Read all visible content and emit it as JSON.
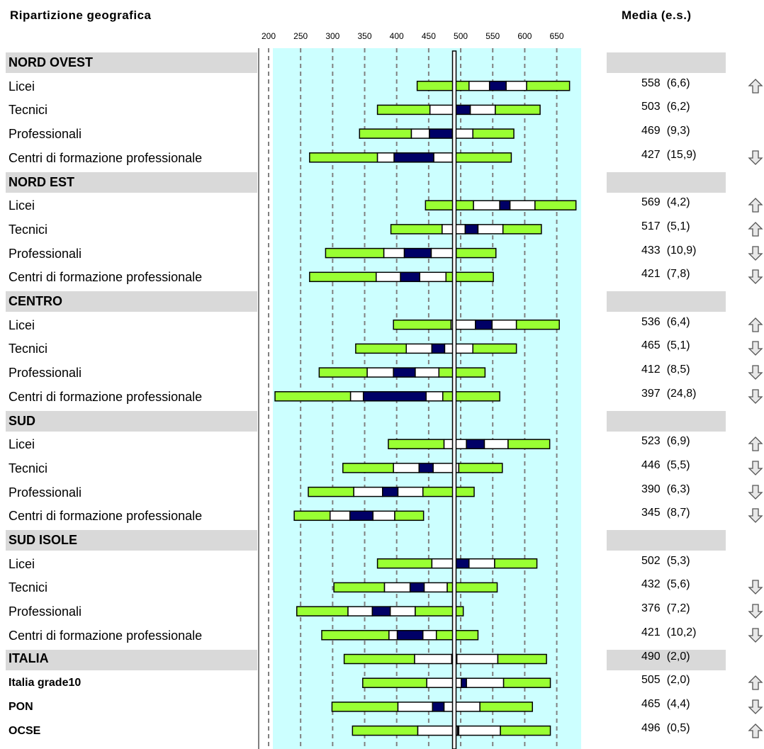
{
  "headers": {
    "left": "Ripartizione geografica",
    "right": "Media (e.s.)"
  },
  "chart_data": {
    "type": "percentile-bar",
    "x_ticks": [
      200,
      250,
      300,
      350,
      400,
      450,
      500,
      550,
      600,
      650
    ],
    "xlim": [
      185,
      690
    ],
    "reference_value": 490,
    "segment_colors": {
      "p5_p25": "#99ff33",
      "p25_ci": "#ffffff",
      "ci": "#000066",
      "ci_p75": "#ffffff",
      "p75_p95": "#99ff33"
    },
    "rows": [
      {
        "label": "NORD OVEST",
        "kind": "section"
      },
      {
        "label": "Licei",
        "kind": "item",
        "mean": "558",
        "se": "(6,6)",
        "arrow": "up",
        "p": [
          432,
          513,
          545,
          571,
          603,
          670
        ]
      },
      {
        "label": "Tecnici",
        "kind": "item",
        "mean": "503",
        "se": "(6,2)",
        "arrow": "none",
        "p": [
          370,
          452,
          491,
          515,
          554,
          624
        ]
      },
      {
        "label": "Professionali",
        "kind": "item",
        "mean": "469",
        "se": "(9,3)",
        "arrow": "none",
        "p": [
          342,
          423,
          451,
          487,
          519,
          583
        ]
      },
      {
        "label": "Centri di formazione professionale",
        "kind": "item",
        "mean": "427",
        "se": "(15,9)",
        "arrow": "down",
        "p": [
          264,
          370,
          396,
          458,
          487,
          579
        ]
      },
      {
        "label": "NORD EST",
        "kind": "section"
      },
      {
        "label": "Licei",
        "kind": "item",
        "mean": "569",
        "se": "(4,2)",
        "arrow": "up",
        "p": [
          445,
          520,
          561,
          577,
          616,
          680
        ]
      },
      {
        "label": "Tecnici",
        "kind": "item",
        "mean": "517",
        "se": "(5,1)",
        "arrow": "up",
        "p": [
          391,
          471,
          507,
          527,
          566,
          626
        ]
      },
      {
        "label": "Professionali",
        "kind": "item",
        "mean": "433",
        "se": "(10,9)",
        "arrow": "down",
        "p": [
          289,
          380,
          412,
          454,
          493,
          555
        ]
      },
      {
        "label": "Centri di formazione professionale",
        "kind": "item",
        "mean": "421",
        "se": "(7,8)",
        "arrow": "down",
        "p": [
          264,
          368,
          406,
          436,
          477,
          551
        ]
      },
      {
        "label": "CENTRO",
        "kind": "section"
      },
      {
        "label": "Licei",
        "kind": "item",
        "mean": "536",
        "se": "(6,4)",
        "arrow": "up",
        "p": [
          395,
          485,
          523,
          549,
          587,
          654
        ]
      },
      {
        "label": "Tecnici",
        "kind": "item",
        "mean": "465",
        "se": "(5,1)",
        "arrow": "down",
        "p": [
          336,
          415,
          455,
          475,
          519,
          587
        ]
      },
      {
        "label": "Professionali",
        "kind": "item",
        "mean": "412",
        "se": "(8,5)",
        "arrow": "down",
        "p": [
          279,
          354,
          395,
          429,
          466,
          538
        ]
      },
      {
        "label": "Centri di formazione professionale",
        "kind": "item",
        "mean": "397",
        "se": "(24,8)",
        "arrow": "down",
        "p": [
          210,
          328,
          348,
          446,
          472,
          561
        ]
      },
      {
        "label": "SUD",
        "kind": "section"
      },
      {
        "label": "Licei",
        "kind": "item",
        "mean": "523",
        "se": "(6,9)",
        "arrow": "up",
        "p": [
          387,
          474,
          509,
          537,
          574,
          639
        ]
      },
      {
        "label": "Tecnici",
        "kind": "item",
        "mean": "446",
        "se": "(5,5)",
        "arrow": "down",
        "p": [
          316,
          395,
          435,
          457,
          497,
          565
        ]
      },
      {
        "label": "Professionali",
        "kind": "item",
        "mean": "390",
        "se": "(6,3)",
        "arrow": "down",
        "p": [
          262,
          333,
          378,
          402,
          441,
          521
        ]
      },
      {
        "label": "Centri di formazione professionale",
        "kind": "item",
        "mean": "345",
        "se": "(8,7)",
        "arrow": "down",
        "p": [
          240,
          296,
          327,
          363,
          397,
          442
        ]
      },
      {
        "label": "SUD ISOLE",
        "kind": "section"
      },
      {
        "label": "Licei",
        "kind": "item",
        "mean": "502",
        "se": "(5,3)",
        "arrow": "none",
        "p": [
          370,
          455,
          491,
          513,
          553,
          619
        ]
      },
      {
        "label": "Tecnici",
        "kind": "item",
        "mean": "432",
        "se": "(5,6)",
        "arrow": "down",
        "p": [
          302,
          381,
          421,
          443,
          479,
          557
        ]
      },
      {
        "label": "Professionali",
        "kind": "item",
        "mean": "376",
        "se": "(7,2)",
        "arrow": "down",
        "p": [
          244,
          324,
          362,
          390,
          429,
          504
        ]
      },
      {
        "label": "Centri di formazione professionale",
        "kind": "item",
        "mean": "421",
        "se": "(10,2)",
        "arrow": "down",
        "p": [
          283,
          388,
          401,
          441,
          462,
          527
        ]
      },
      {
        "label": "ITALIA",
        "kind": "total",
        "mean": "490",
        "se": "(2,0)",
        "arrow": "none",
        "p": [
          318,
          428,
          486,
          494,
          558,
          634
        ]
      },
      {
        "label": "Italia grade10",
        "kind": "bold",
        "mean": "505",
        "se": "(2,0)",
        "arrow": "up",
        "p": [
          347,
          447,
          501,
          509,
          567,
          640
        ]
      },
      {
        "label": "PON",
        "kind": "bold",
        "mean": "465",
        "se": "(4,4)",
        "arrow": "down",
        "p": [
          299,
          402,
          456,
          474,
          530,
          612
        ]
      },
      {
        "label": "OCSE",
        "kind": "bold",
        "mean": "496",
        "se": "(0,5)",
        "arrow": "up",
        "p": [
          331,
          433,
          495,
          497,
          562,
          640
        ]
      }
    ]
  }
}
